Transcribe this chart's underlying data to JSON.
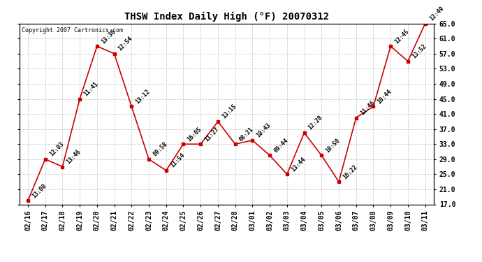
{
  "title": "THSW Index Daily High (°F) 20070312",
  "copyright": "Copyright 2007 Cartronics.com",
  "background_color": "#ffffff",
  "grid_color": "#cccccc",
  "line_color": "#cc0000",
  "marker_color": "#cc0000",
  "dates": [
    "02/16",
    "02/17",
    "02/18",
    "02/19",
    "02/20",
    "02/21",
    "02/22",
    "02/23",
    "02/24",
    "02/25",
    "02/26",
    "02/27",
    "02/28",
    "03/01",
    "03/02",
    "03/03",
    "03/04",
    "03/05",
    "03/06",
    "03/07",
    "03/08",
    "03/09",
    "03/10",
    "03/11"
  ],
  "values": [
    18.0,
    29.0,
    27.0,
    45.0,
    59.0,
    57.0,
    43.0,
    29.0,
    26.0,
    33.0,
    33.0,
    39.0,
    33.0,
    34.0,
    30.0,
    25.0,
    36.0,
    30.0,
    23.0,
    40.0,
    43.0,
    59.0,
    55.0,
    65.0
  ],
  "time_labels": [
    "13:00",
    "12:03",
    "13:46",
    "11:41",
    "13:36",
    "12:54",
    "13:12",
    "09:58",
    "11:54",
    "16:05",
    "11:27",
    "13:15",
    "08:21",
    "18:43",
    "09:44",
    "13:44",
    "12:28",
    "10:50",
    "10:22",
    "11:46",
    "10:44",
    "12:45",
    "13:52",
    "12:49"
  ],
  "ylim": [
    17.0,
    65.0
  ],
  "yticks": [
    17.0,
    21.0,
    25.0,
    29.0,
    33.0,
    37.0,
    41.0,
    45.0,
    49.0,
    53.0,
    57.0,
    61.0,
    65.0
  ],
  "title_fontsize": 10,
  "label_fontsize": 6.0,
  "tick_fontsize": 7.0,
  "copyright_fontsize": 6.0
}
